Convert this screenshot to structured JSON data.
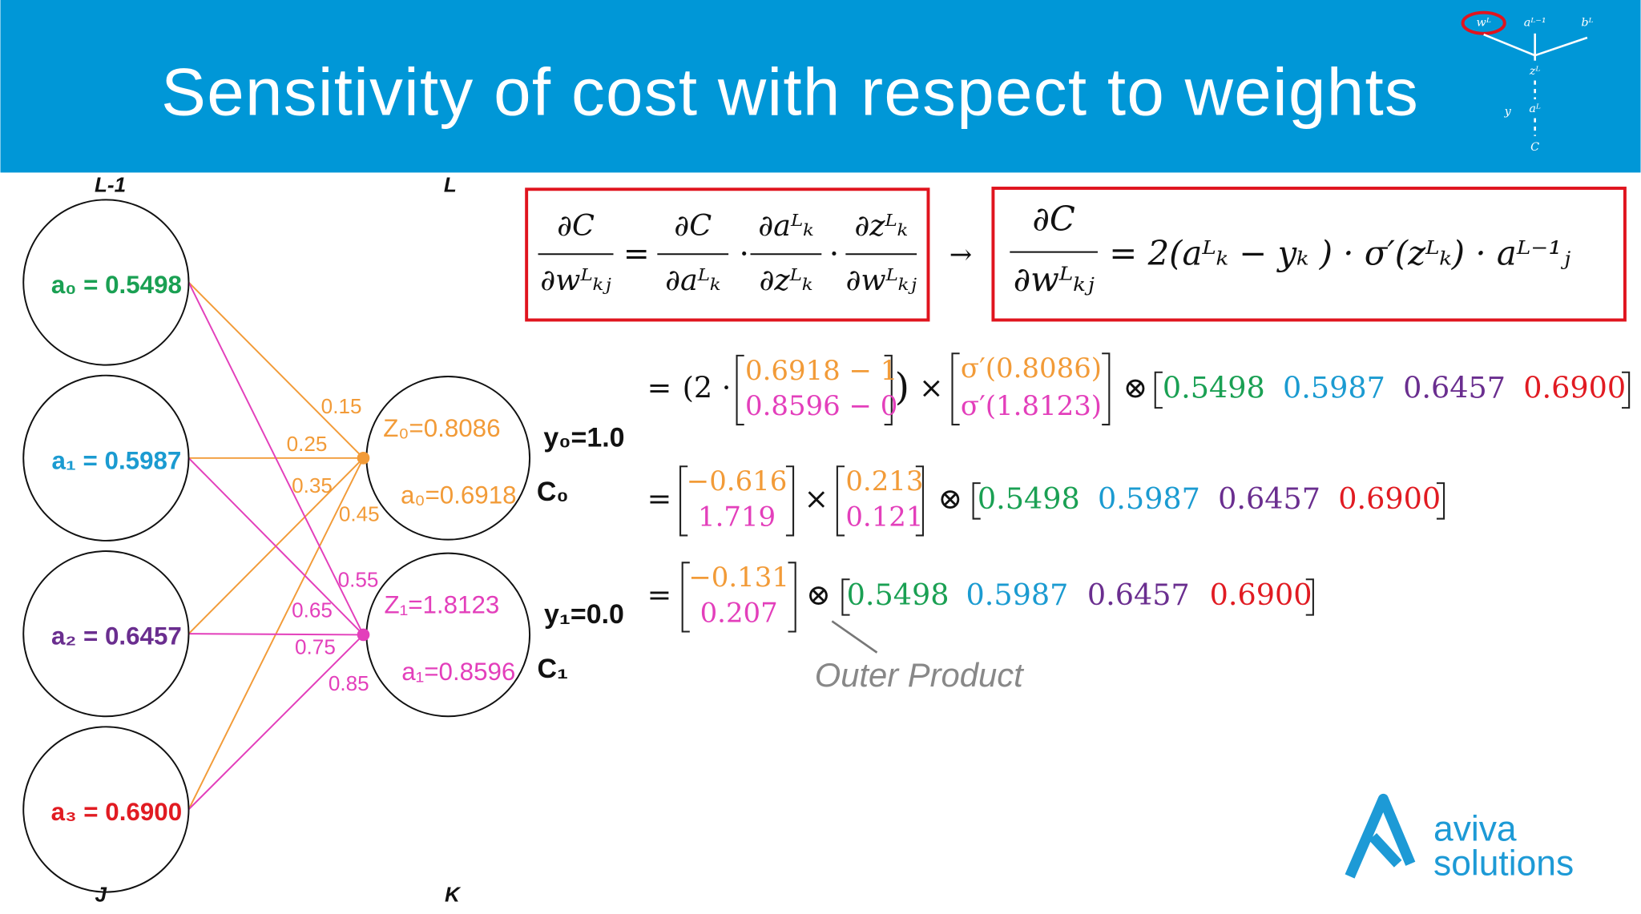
{
  "header": {
    "title": "Sensitivity of cost with respect to weights",
    "mini": [
      "wᴸ",
      "aᴸ⁻¹",
      "bᴸ",
      "zᴸ",
      "y",
      "aᴸ",
      "C"
    ]
  },
  "network": {
    "layers": [
      "L-1",
      "L",
      "J",
      "K"
    ],
    "inputs": [
      "a₀ = 0.5498",
      "a₁ = 0.5987",
      "a₂ = 0.6457",
      "a₃ = 0.6900"
    ],
    "outputs": [
      {
        "z": "Z₀=0.8086",
        "a": "a₀=0.6918",
        "y": "y₀=1.0",
        "c": "C₀"
      },
      {
        "z": "Z₁=1.8123",
        "a": "a₁=0.8596",
        "y": "y₁=0.0",
        "c": "C₁"
      }
    ],
    "weights": [
      [
        0.15,
        0.25,
        0.35,
        0.45
      ],
      [
        0.55,
        0.65,
        0.75,
        0.85
      ]
    ],
    "colors": {
      "inputs": [
        "#1aa053",
        "#1b9bd1",
        "#6a2e8f",
        "#e11b22"
      ],
      "outputs": [
        "#f29b38",
        "#e33fbb"
      ]
    }
  },
  "formulas": {
    "chain": {
      "lhs": [
        "∂C",
        "∂wᴸₖⱼ"
      ],
      "terms": [
        [
          "∂C",
          "∂aᴸₖ"
        ],
        [
          "∂aᴸₖ",
          "∂zᴸₖ"
        ],
        [
          "∂zᴸₖ",
          "∂wᴸₖⱼ"
        ]
      ]
    },
    "result": {
      "lhs": [
        "∂C",
        "∂wᴸₖⱼ"
      ],
      "rhs": "= 2(aᴸₖ − yₖ ) · σ′(zᴸₖ) · aᴸ⁻¹ⱼ"
    }
  },
  "symbols": {
    "eq": "=",
    "dot": "·",
    "arrow": "→",
    "times": "×",
    "otimes": "⊗",
    "open": "(2 ·",
    "close": ")"
  },
  "steps": [
    {
      "m1": [
        "0.6918 − 1",
        "0.8596 − 0"
      ],
      "m2": [
        "σ′(0.8086)",
        "σ′(1.8123)"
      ]
    },
    {
      "m1": [
        "−0.616",
        "1.719"
      ],
      "m2": [
        "0.213",
        "0.121"
      ]
    },
    {
      "m1": [
        "−0.131",
        "0.207"
      ]
    }
  ],
  "row": [
    "0.5498",
    "0.5987",
    "0.6457",
    "0.6900"
  ],
  "annotation": "Outer Product",
  "logo": [
    "aviva",
    "solutions"
  ]
}
